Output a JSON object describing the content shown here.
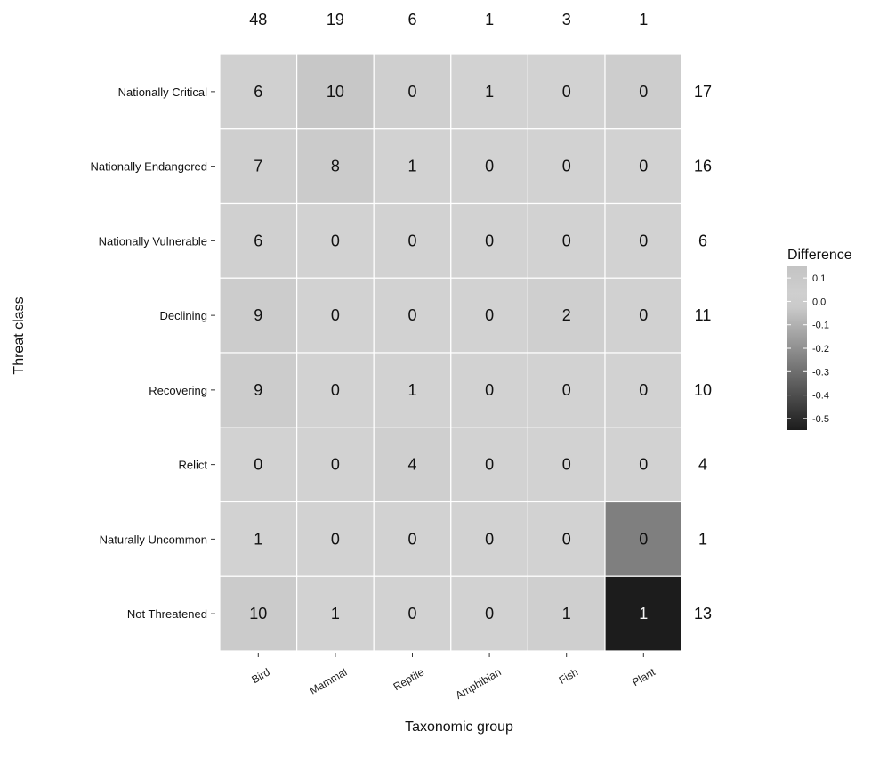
{
  "chart_data": {
    "type": "heatmap",
    "title": "",
    "xlabel": "Taxonomic group",
    "ylabel": "Threat class",
    "x_categories": [
      "Bird",
      "Mammal",
      "Reptile",
      "Amphibian",
      "Fish",
      "Plant"
    ],
    "y_categories": [
      "Nationally Critical",
      "Nationally Endangered",
      "Nationally Vulnerable",
      "Declining",
      "Recovering",
      "Relict",
      "Naturally Uncommon",
      "Not Threatened"
    ],
    "counts": [
      [
        6,
        10,
        0,
        1,
        0,
        0
      ],
      [
        7,
        8,
        1,
        0,
        0,
        0
      ],
      [
        6,
        0,
        0,
        0,
        0,
        0
      ],
      [
        9,
        0,
        0,
        0,
        2,
        0
      ],
      [
        9,
        0,
        1,
        0,
        0,
        0
      ],
      [
        0,
        0,
        4,
        0,
        0,
        0
      ],
      [
        1,
        0,
        0,
        0,
        0,
        0
      ],
      [
        10,
        1,
        0,
        0,
        1,
        1
      ]
    ],
    "difference": [
      [
        0.02,
        0.12,
        -0.01,
        0.0,
        0.0,
        0.05
      ],
      [
        0.03,
        0.07,
        0.0,
        0.0,
        0.0,
        0.0
      ],
      [
        0.02,
        0.0,
        0.0,
        0.0,
        0.0,
        0.0
      ],
      [
        0.06,
        0.0,
        0.0,
        0.0,
        0.03,
        0.01
      ],
      [
        0.06,
        0.0,
        0.0,
        0.0,
        0.0,
        0.0
      ],
      [
        0.0,
        0.0,
        0.03,
        0.0,
        0.0,
        0.0
      ],
      [
        0.0,
        0.0,
        0.0,
        0.0,
        0.0,
        -0.25
      ],
      [
        0.07,
        0.0,
        0.0,
        0.0,
        0.03,
        -0.55
      ]
    ],
    "column_totals": [
      "48",
      "19",
      "6",
      "1",
      "3",
      "1"
    ],
    "row_totals": [
      "17",
      "16",
      "6",
      "11",
      "10",
      "4",
      "1",
      "13"
    ],
    "legend": {
      "title": "Difference",
      "min": -0.55,
      "max": 0.15,
      "ticks": [
        0.1,
        0.0,
        -0.1,
        -0.2,
        -0.3,
        -0.4,
        -0.5
      ],
      "tick_labels": [
        "0.1",
        "0.0",
        "-0.1",
        "-0.2",
        "-0.3",
        "-0.4",
        "-0.5"
      ],
      "placement": "right"
    },
    "colors": {
      "high": "#c4c4c4",
      "mid": "#d2d2d2",
      "low": "#1c1c1c",
      "cell_border": "#ffffff"
    }
  }
}
